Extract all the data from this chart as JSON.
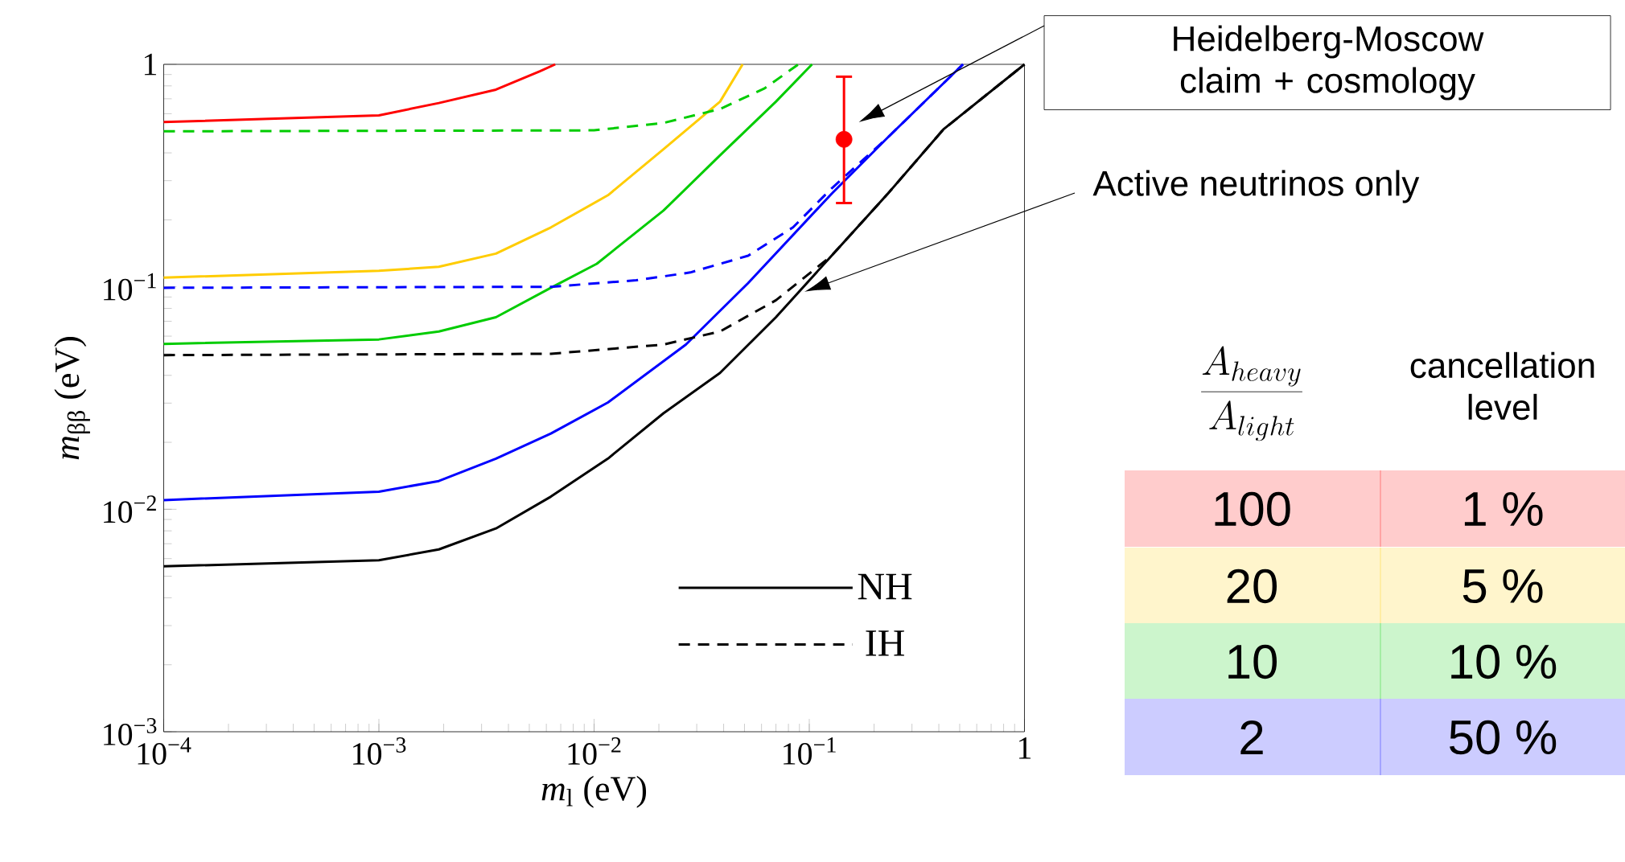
{
  "chart_data": {
    "type": "line",
    "xlabel": "*m*$_{l}$ (eV)",
    "ylabel": "*m*$_{ββ}$ (eV)",
    "log": "xy",
    "xlim": [
      0.0001,
      1
    ],
    "ylim": [
      0.001,
      1
    ],
    "xticks": [
      {
        "value": 0.0001,
        "label": "10$^{−4}$"
      },
      {
        "value": 0.001,
        "label": "10$^{−3}$"
      },
      {
        "value": 0.01,
        "label": "10$^{−2}$"
      },
      {
        "value": 0.1,
        "label": "10$^{−1}$"
      },
      1
    ],
    "yticks": [
      {
        "value": 0.001,
        "label": "10$^{−3}$"
      },
      {
        "value": 0.01,
        "label": "10$^{−2}$"
      },
      {
        "value": 0.1,
        "label": "10$^{−1}$"
      },
      1
    ],
    "marker": "none",
    "legend": "bottom right",
    "series": [
      {
        "color": "#ff0000",
        "line_style": "solid",
        "x": [
          0.0001,
          0.001,
          0.0019,
          0.0035,
          0.0056,
          0.0066
        ],
        "values": [
          0.55,
          0.59,
          0.67,
          0.77,
          0.93,
          1
        ]
      },
      {
        "color": "#ffcc00",
        "line_style": "solid",
        "x": [
          0.0001,
          0.001,
          0.0019,
          0.0035,
          0.0063,
          0.0116,
          0.021,
          0.0385,
          0.049
        ],
        "values": [
          0.11,
          0.118,
          0.123,
          0.141,
          0.185,
          0.258,
          0.415,
          0.68,
          1
        ]
      },
      {
        "color": "#00cc00",
        "line_style": "solid",
        "x": [
          0.0001,
          0.001,
          0.0019,
          0.0035,
          0.0063,
          0.0103,
          0.021,
          0.0385,
          0.07,
          0.103
        ],
        "values": [
          0.0554,
          0.058,
          0.063,
          0.073,
          0.099,
          0.127,
          0.22,
          0.39,
          0.68,
          1
        ]
      },
      {
        "color": "#00cc00",
        "line_style": "dashed",
        "x": [
          0.0001,
          0.01,
          0.021,
          0.0385,
          0.062,
          0.089
        ],
        "values": [
          0.5,
          0.505,
          0.545,
          0.63,
          0.78,
          1
        ]
      },
      {
        "color": "#0000ff",
        "line_style": "solid",
        "x": [
          0.0001,
          0.001,
          0.0019,
          0.0035,
          0.0063,
          0.0116,
          0.0267,
          0.052,
          0.127,
          0.23,
          0.518
        ],
        "values": [
          0.011,
          0.012,
          0.0134,
          0.0169,
          0.0219,
          0.0302,
          0.055,
          0.104,
          0.262,
          0.466,
          1
        ]
      },
      {
        "color": "#0000ff",
        "line_style": "dashed",
        "x": [
          0.0001,
          0.0063,
          0.0157,
          0.028,
          0.052,
          0.084,
          0.127,
          0.23,
          0.518
        ],
        "values": [
          0.099,
          0.1,
          0.107,
          0.116,
          0.138,
          0.185,
          0.277,
          0.466,
          1
        ]
      },
      {
        "name": "NH",
        "color": "#000000",
        "line_style": "solid",
        "x": [
          0.0001,
          0.001,
          0.0019,
          0.0035,
          0.0063,
          0.0116,
          0.021,
          0.0385,
          0.07,
          0.127,
          0.23,
          0.42,
          1
        ],
        "values": [
          0.00554,
          0.0059,
          0.0066,
          0.0082,
          0.0114,
          0.0169,
          0.027,
          0.041,
          0.073,
          0.138,
          0.26,
          0.51,
          1
        ]
      },
      {
        "name": "IH",
        "color": "#000000",
        "line_style": "dashed",
        "x": [
          0.0001,
          0.0063,
          0.021,
          0.0385,
          0.07,
          0.127,
          0.23,
          0.42,
          1
        ],
        "values": [
          0.0493,
          0.05,
          0.055,
          0.063,
          0.087,
          0.138,
          0.26,
          0.51,
          1
        ]
      },
      {
        "type": "scatter",
        "color": "#ff0000",
        "x": [
          0.145
        ],
        "values": [
          0.46
        ],
        "errors": [
          [
            0.238,
            0.88
          ]
        ]
      }
    ],
    "annotations": [
      "Heidelberg-Moscow claim + cosmology",
      "Active neutrinos only",
      "\\frac{A_{heavy}}{A_{light}}",
      "cancellation level",
      "100",
      "1 %",
      "20",
      "5 %",
      "10",
      "10 %",
      "2",
      "50 %"
    ]
  }
}
